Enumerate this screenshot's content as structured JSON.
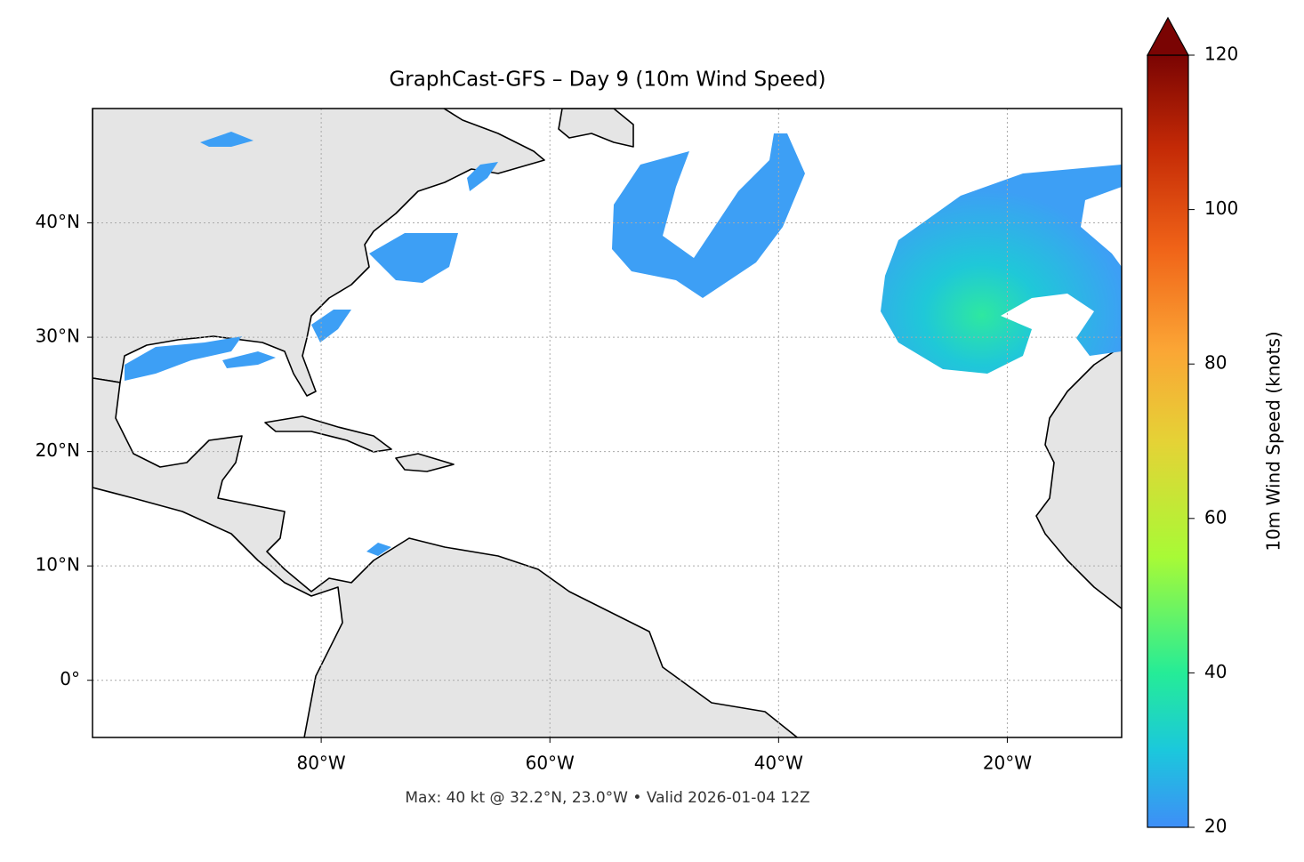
{
  "title": "GraphCast-GFS – Day 9 (10m Wind Speed)",
  "footer": "Max: 40 kt @ 32.2°N, 23.0°W • Valid 2026-01-04 12Z",
  "map": {
    "xlim": [
      -100,
      -10
    ],
    "ylim": [
      -5,
      50
    ],
    "xticks": [
      {
        "value": -80,
        "label": "80°W"
      },
      {
        "value": -60,
        "label": "60°W"
      },
      {
        "value": -40,
        "label": "40°W"
      },
      {
        "value": -20,
        "label": "20°W"
      }
    ],
    "yticks": [
      {
        "value": 0,
        "label": "0°"
      },
      {
        "value": 10,
        "label": "10°N"
      },
      {
        "value": 20,
        "label": "20°N"
      },
      {
        "value": 30,
        "label": "30°N"
      },
      {
        "value": 40,
        "label": "40°N"
      }
    ]
  },
  "colorbar": {
    "label": "10m Wind Speed (knots)",
    "lim": [
      20,
      120
    ],
    "ticks": [
      20,
      40,
      60,
      80,
      100,
      120
    ]
  }
}
